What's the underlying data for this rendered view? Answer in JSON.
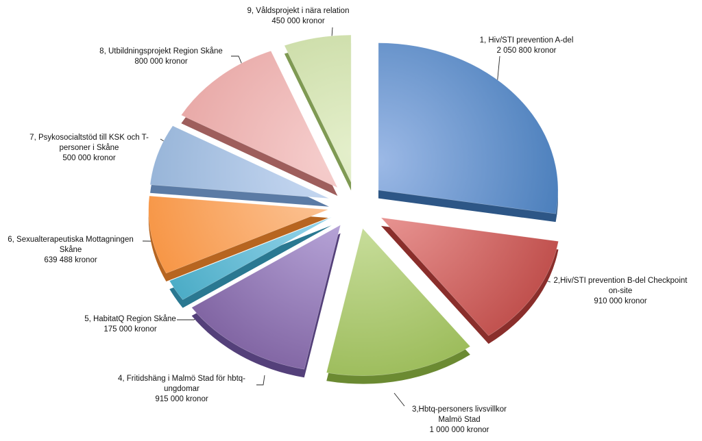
{
  "chart_data": {
    "type": "pie",
    "title": "",
    "legend": "none",
    "slices": [
      {
        "name": "1, Hiv/STI prevention A-del",
        "value": 2050800,
        "value_label": "2 050 800 kronor",
        "color": "#4a7ebb",
        "light": "#9cb9e6",
        "dark": "#2d5686"
      },
      {
        "name": "2,Hiv/STI prevention B-del Checkpoint on-site",
        "value": 910000,
        "value_label": "910 000 kronor",
        "color": "#c0504d",
        "light": "#ee9e9c",
        "dark": "#8a2e2b"
      },
      {
        "name": "3,Hbtq-personers livsvillkor Malmö Stad",
        "value": 1000000,
        "value_label": "1 000 000 kronor",
        "color": "#9bbb59",
        "light": "#cfe3a6",
        "dark": "#6b8a32"
      },
      {
        "name": "4, Fritidshäng i Malmö Stad för hbtq-ungdomar",
        "value": 915000,
        "value_label": "915 000 kronor",
        "color": "#8064a2",
        "light": "#bfaee0",
        "dark": "#54407a"
      },
      {
        "name": "5, HabitatQ Region Skåne",
        "value": 175000,
        "value_label": "175 000 kronor",
        "color": "#4bacc6",
        "light": "#9fdaf0",
        "dark": "#2a7891"
      },
      {
        "name": "6, Sexualterapeutiska Mottagningen Skåne",
        "value": 639488,
        "value_label": "639 488 kronor",
        "color": "#f79646",
        "light": "#fcc79c",
        "dark": "#b76520"
      },
      {
        "name": "7, Psykosocialtstöd till KSK och T-personer i Skåne",
        "value": 500000,
        "value_label": "500 000 kronor",
        "color": "#95b3d7",
        "light": "#c9daf3",
        "dark": "#5b7ba5"
      },
      {
        "name": "8, Utbildningsprojekt Region Skåne",
        "value": 800000,
        "value_label": "800 000 kronor",
        "color": "#e6a3a1",
        "light": "#f6cfce",
        "dark": "#9e5e5c"
      },
      {
        "name": "9, Våldsprojekt i nära relation",
        "value": 450000,
        "value_label": "450 000 kronor",
        "color": "#c3d69b",
        "light": "#e4efcb",
        "dark": "#7f9a53"
      }
    ]
  },
  "labels": [
    {
      "lines": [
        "1, Hiv/STI prevention A-del",
        "2 050 800 kronor"
      ]
    },
    {
      "lines": [
        "2,Hiv/STI prevention B-del Checkpoint",
        "on-site",
        "910 000 kronor"
      ]
    },
    {
      "lines": [
        "3,Hbtq-personers livsvillkor",
        "Malmö Stad",
        "1 000 000 kronor"
      ]
    },
    {
      "lines": [
        "4, Fritidshäng i Malmö Stad för hbtq-",
        "ungdomar",
        "915 000 kronor"
      ]
    },
    {
      "lines": [
        "5, HabitatQ Region Skåne",
        "175 000 kronor"
      ]
    },
    {
      "lines": [
        "6, Sexualterapeutiska Mottagningen",
        "Skåne",
        "639 488 kronor"
      ]
    },
    {
      "lines": [
        "7, Psykosocialtstöd till KSK och T-",
        "personer i Skåne",
        "500 000 kronor"
      ]
    },
    {
      "lines": [
        "8, Utbildningsprojekt Region Skåne",
        "800 000 kronor"
      ]
    },
    {
      "lines": [
        "9, Våldsprojekt i nära relation",
        "450 000 kronor"
      ]
    }
  ]
}
